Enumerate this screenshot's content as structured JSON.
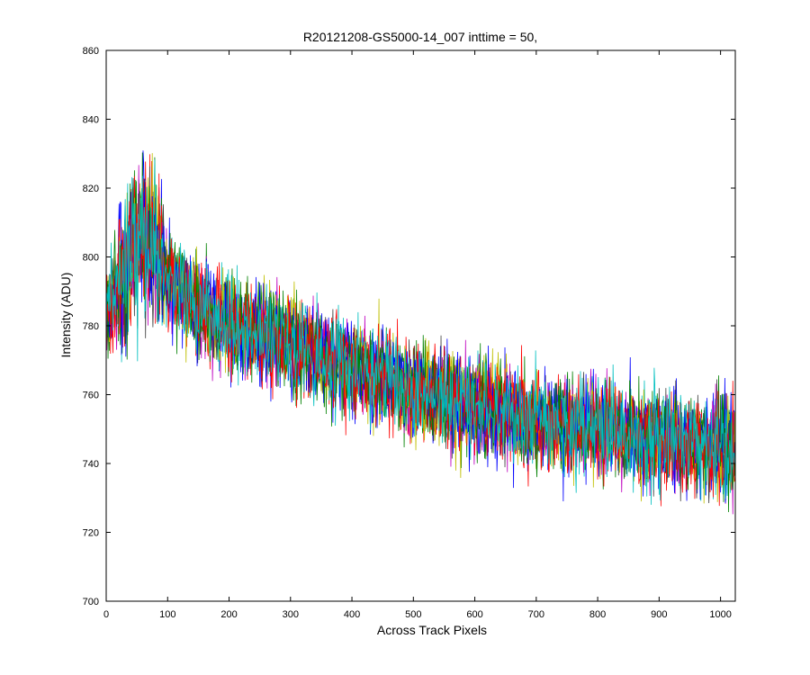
{
  "chart_data": {
    "type": "line",
    "title": "R20121208-GS5000-14_007 inttime = 50,",
    "xlabel": "Across Track Pixels",
    "ylabel": "Intensity (ADU)",
    "xlim": [
      0,
      1024
    ],
    "ylim": [
      700,
      860
    ],
    "xticks": [
      0,
      100,
      200,
      300,
      400,
      500,
      600,
      700,
      800,
      900,
      1000
    ],
    "yticks": [
      700,
      720,
      740,
      760,
      780,
      800,
      820,
      840,
      860
    ],
    "grid": false,
    "legend": "none",
    "n_points": 1024,
    "trend": {
      "x": [
        0,
        20,
        40,
        60,
        80,
        100,
        150,
        200,
        300,
        400,
        500,
        600,
        700,
        800,
        900,
        1024
      ],
      "y": [
        782,
        790,
        800,
        808,
        804,
        794,
        785,
        780,
        775,
        768,
        762,
        757,
        752,
        750,
        747,
        744
      ]
    },
    "noise_amplitude": 12,
    "series": [
      {
        "color": "#0000ff",
        "seed": 11
      },
      {
        "color": "#008000",
        "seed": 23
      },
      {
        "color": "#ff0000",
        "seed": 37
      },
      {
        "color": "#00bfbf",
        "seed": 41
      },
      {
        "color": "#bf00bf",
        "seed": 53
      },
      {
        "color": "#bfbf00",
        "seed": 67
      },
      {
        "color": "#404040",
        "seed": 79
      },
      {
        "color": "#0000ff",
        "seed": 83
      },
      {
        "color": "#008000",
        "seed": 97
      },
      {
        "color": "#ff0000",
        "seed": 101
      },
      {
        "color": "#00bfbf",
        "seed": 113
      }
    ]
  }
}
